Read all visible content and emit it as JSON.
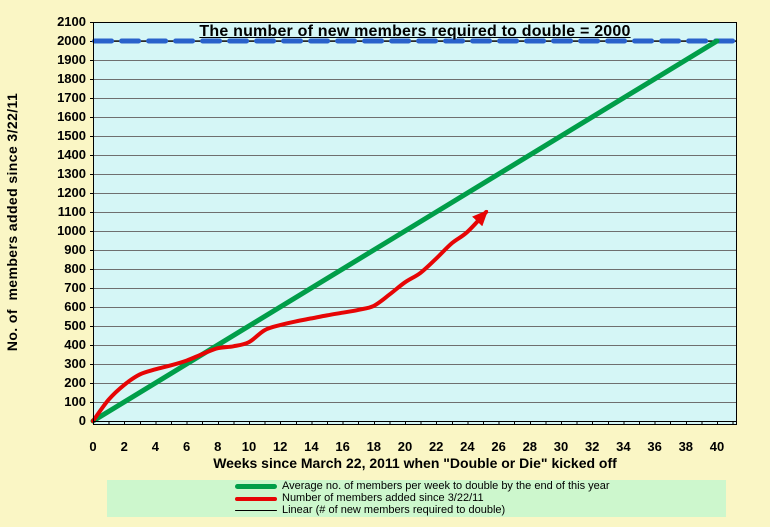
{
  "title": "The number of new members required to double = 2000",
  "y_axis": {
    "title": "No. of  members added since 3/22/11",
    "tick_labels": [
      0,
      100,
      200,
      300,
      400,
      500,
      600,
      700,
      800,
      900,
      1000,
      1100,
      1200,
      1300,
      1400,
      1500,
      1600,
      1700,
      1800,
      1900,
      2000,
      2100
    ]
  },
  "x_axis": {
    "title": "Weeks since March 22, 2011 when \"Double or Die\" kicked off",
    "tick_labels": [
      0,
      2,
      4,
      6,
      8,
      10,
      12,
      14,
      16,
      18,
      20,
      22,
      24,
      26,
      28,
      30,
      32,
      34,
      36,
      38,
      40
    ]
  },
  "legend": {
    "items": [
      {
        "label": "Average no. of members per week to double by the end of this year",
        "color": "#009E49",
        "thickness": 5
      },
      {
        "label": "Number of members added since 3/22/11",
        "color": "#E60505",
        "thickness": 4
      },
      {
        "label": "Linear (# of new members required to double)",
        "color": "#000000",
        "thickness": 1
      }
    ]
  },
  "colors": {
    "page_background": "#FAF6C5",
    "plot_background": "#D5F6F6",
    "gridline": "#6F6F6F",
    "axis": "#000000",
    "legend_background": "#CDF7CD",
    "green_line": "#009E49",
    "red_line": "#E60505",
    "blue_dashed_line": "#2A62CB",
    "linear_line": "#000000"
  },
  "chart_data": {
    "type": "line",
    "title": "The number of new members required to double = 2000",
    "xlabel": "Weeks since March 22, 2011 when \"Double or Die\" kicked off",
    "ylabel": "No. of  members added since 3/22/11",
    "xlim": [
      0,
      41.3
    ],
    "ylim": [
      0,
      2100
    ],
    "x_tick_step": 2,
    "y_tick_step": 100,
    "grid": true,
    "legend_position": "bottom",
    "target_value": 2000,
    "series": [
      {
        "id": "linear-black",
        "name": "Linear (# of new members required to double)",
        "color": "#000000",
        "width": 1.3,
        "points": [
          [
            0,
            2000
          ],
          [
            41.3,
            2000
          ]
        ]
      },
      {
        "id": "required-blue-dashed",
        "name": "# of new members required to double = 2000",
        "color": "#2A62CB",
        "width": 5,
        "dash": [
          17,
          10
        ],
        "points": [
          [
            0.1,
            2000
          ],
          [
            41.3,
            2000
          ]
        ]
      },
      {
        "id": "average-green",
        "name": "Average no. of members per week to double by the end of this year",
        "color": "#009E49",
        "width": 5,
        "points": [
          [
            0,
            0
          ],
          [
            40,
            2000
          ]
        ]
      },
      {
        "id": "actual-red",
        "name": "Number of members added since 3/22/11",
        "color": "#E60505",
        "width": 4,
        "smooth": true,
        "arrow": true,
        "points": [
          [
            0,
            0
          ],
          [
            1,
            112
          ],
          [
            2,
            190
          ],
          [
            3,
            245
          ],
          [
            4,
            272
          ],
          [
            5,
            293
          ],
          [
            6,
            318
          ],
          [
            7,
            352
          ],
          [
            8,
            383
          ],
          [
            9,
            393
          ],
          [
            10,
            415
          ],
          [
            11,
            478
          ],
          [
            12,
            505
          ],
          [
            13,
            524
          ],
          [
            14,
            540
          ],
          [
            15,
            556
          ],
          [
            16,
            570
          ],
          [
            17,
            585
          ],
          [
            18,
            606
          ],
          [
            19,
            665
          ],
          [
            20,
            730
          ],
          [
            21,
            780
          ],
          [
            22,
            855
          ],
          [
            23,
            935
          ],
          [
            24,
            995
          ],
          [
            25.2,
            1100
          ]
        ]
      }
    ]
  }
}
